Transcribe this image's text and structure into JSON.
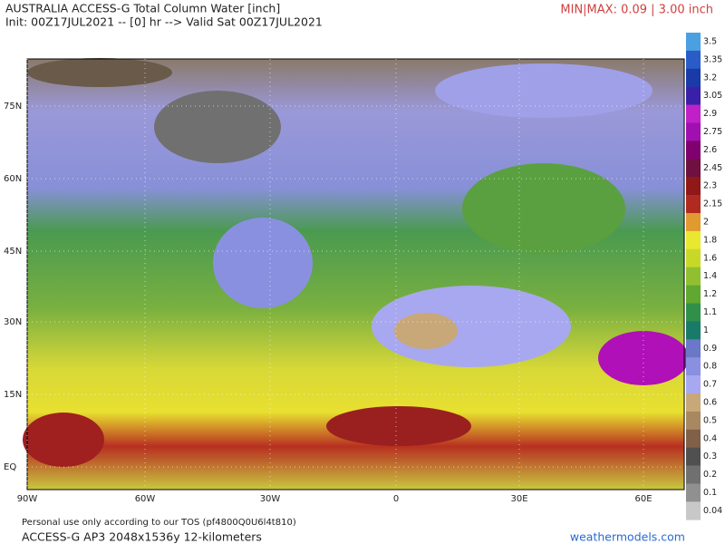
{
  "header": {
    "title": "AUSTRALIA ACCESS-G Total Column Water [inch]",
    "init": "Init: 00Z17JUL2021 -- [0] hr --> Valid Sat 00Z17JUL2021",
    "minmax": "MIN|MAX: 0.09 | 3.00 inch"
  },
  "map": {
    "lat_labels": [
      "75N",
      "60N",
      "45N",
      "30N",
      "15N",
      "EQ"
    ],
    "lon_labels": [
      "90W",
      "60W",
      "30W",
      "0",
      "30E",
      "60E"
    ]
  },
  "colorbar": [
    {
      "label": "3.5",
      "color": "#4aa0e0"
    },
    {
      "label": "3.35",
      "color": "#2a5cc8"
    },
    {
      "label": "3.2",
      "color": "#1a3aa8"
    },
    {
      "label": "3.05",
      "color": "#3a20a8"
    },
    {
      "label": "2.9",
      "color": "#c020c8"
    },
    {
      "label": "2.75",
      "color": "#a010b0"
    },
    {
      "label": "2.6",
      "color": "#800070"
    },
    {
      "label": "2.45",
      "color": "#701040"
    },
    {
      "label": "2.3",
      "color": "#901818"
    },
    {
      "label": "2.15",
      "color": "#b02a20"
    },
    {
      "label": "2",
      "color": "#e09a30"
    },
    {
      "label": "1.8",
      "color": "#e8e830"
    },
    {
      "label": "1.6",
      "color": "#c8d828"
    },
    {
      "label": "1.4",
      "color": "#90c030"
    },
    {
      "label": "1.2",
      "color": "#60a830"
    },
    {
      "label": "1.1",
      "color": "#30904a"
    },
    {
      "label": "1",
      "color": "#1a7a6a"
    },
    {
      "label": "0.9",
      "color": "#6a78c8"
    },
    {
      "label": "0.8",
      "color": "#8a90e0"
    },
    {
      "label": "0.7",
      "color": "#a8a8f0"
    },
    {
      "label": "0.6",
      "color": "#c8a878"
    },
    {
      "label": "0.5",
      "color": "#a88860"
    },
    {
      "label": "0.4",
      "color": "#806048"
    },
    {
      "label": "0.3",
      "color": "#505050"
    },
    {
      "label": "0.2",
      "color": "#707070"
    },
    {
      "label": "0.1",
      "color": "#909090"
    },
    {
      "label": "0.04",
      "color": "#c8c8c8"
    }
  ],
  "footer": {
    "tos": "Personal use only according to our TOS (pf4800Q0U6l4t810)",
    "model": "ACCESS-G AP3 2048x1536y 12-kilometers",
    "site": "weathermodels.com"
  }
}
